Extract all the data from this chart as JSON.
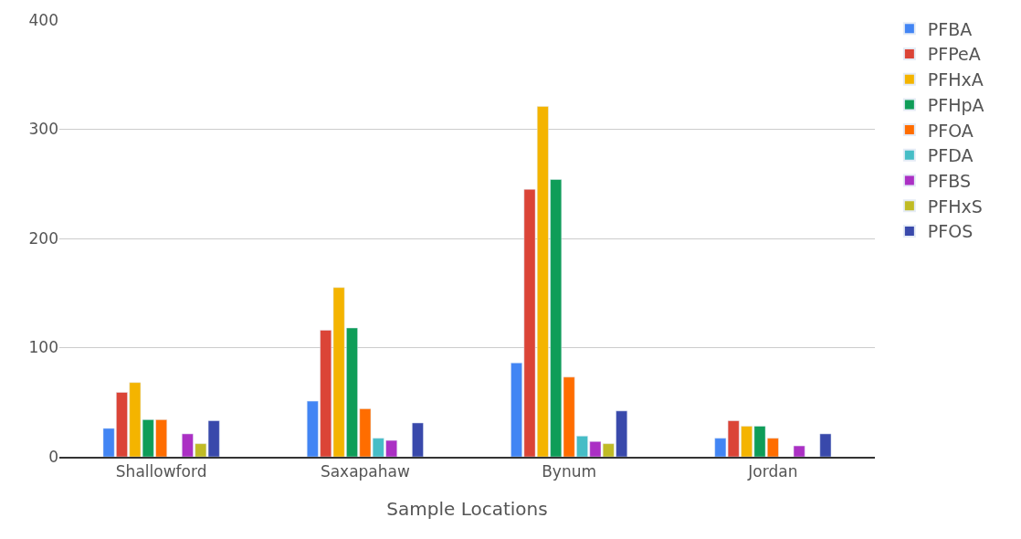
{
  "chart_data": {
    "type": "bar",
    "xlabel": "Sample Locations",
    "categories": [
      "Shallowford",
      "Saxapahaw",
      "Bynum",
      "Jordan"
    ],
    "series": [
      {
        "name": "PFBA",
        "color": "#4285f4",
        "values": [
          26,
          51,
          86,
          17
        ]
      },
      {
        "name": "PFPeA",
        "color": "#db4437",
        "values": [
          59,
          116,
          245,
          33
        ]
      },
      {
        "name": "PFHxA",
        "color": "#f4b400",
        "values": [
          68,
          155,
          321,
          28
        ]
      },
      {
        "name": "PFHpA",
        "color": "#0f9d58",
        "values": [
          34,
          118,
          254,
          28
        ]
      },
      {
        "name": "PFOA",
        "color": "#ff6d00",
        "values": [
          34,
          44,
          73,
          17
        ]
      },
      {
        "name": "PFDA",
        "color": "#46bdc6",
        "values": [
          null,
          17,
          19,
          null
        ]
      },
      {
        "name": "PFBS",
        "color": "#ab30c4",
        "values": [
          21,
          15,
          14,
          10
        ]
      },
      {
        "name": "PFHxS",
        "color": "#c0bb25",
        "values": [
          12,
          null,
          12,
          null
        ]
      },
      {
        "name": "PFOS",
        "color": "#3949ab",
        "values": [
          33,
          31,
          42,
          21
        ]
      }
    ],
    "ylim": [
      0,
      400
    ],
    "yticks": [
      0,
      100,
      200,
      300,
      400
    ],
    "grid": "y",
    "legend": "top right"
  }
}
